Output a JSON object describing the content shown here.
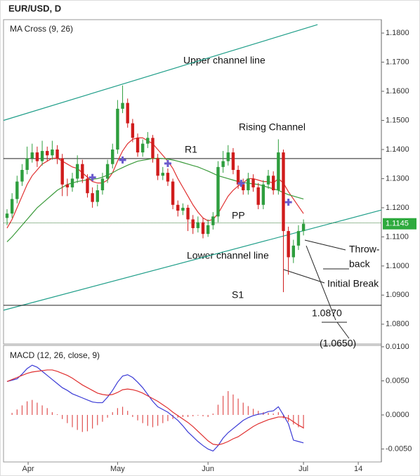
{
  "title": "EUR/USD, D",
  "chart_data": [
    {
      "type": "candlestick",
      "title": "MA Cross (9, 26)",
      "xlim": [
        -0.7,
        74.5
      ],
      "ylim": [
        1.0732,
        1.1846
      ],
      "yticks": [
        {
          "value": 1.18,
          "label": "1.1800"
        },
        {
          "value": 1.17,
          "label": "1.1700"
        },
        {
          "value": 1.16,
          "label": "1.1600"
        },
        {
          "value": 1.15,
          "label": "1.1500"
        },
        {
          "value": 1.14,
          "label": "1.1400"
        },
        {
          "value": 1.13,
          "label": "1.1300"
        },
        {
          "value": 1.12,
          "label": "1.1200"
        },
        {
          "value": 1.11,
          "label": "1.1100"
        },
        {
          "value": 1.1,
          "label": "1.1000"
        },
        {
          "value": 1.09,
          "label": "1.0900"
        },
        {
          "value": 1.08,
          "label": "1.0800"
        }
      ],
      "grid": false,
      "up_color": "#2e9e3e",
      "down_color": "#d01c1c",
      "candles": {
        "open": [
          1.1165,
          1.118,
          1.123,
          1.129,
          1.133,
          1.137,
          1.139,
          1.136,
          1.1395,
          1.138,
          1.14,
          1.137,
          1.128,
          1.127,
          1.13,
          1.135,
          1.13,
          1.125,
          1.122,
          1.126,
          1.13,
          1.135,
          1.14,
          1.154,
          1.156,
          1.149,
          1.144,
          1.139,
          1.142,
          1.144,
          1.137,
          1.131,
          1.132,
          1.129,
          1.121,
          1.119,
          1.12,
          1.116,
          1.113,
          1.115,
          1.111,
          1.114,
          1.117,
          1.134,
          1.136,
          1.139,
          1.133,
          1.128,
          1.126,
          1.13,
          1.127,
          1.121,
          1.128,
          1.131,
          1.126,
          1.139,
          1.112,
          1.103,
          1.107,
          1.112
        ],
        "high": [
          1.1195,
          1.125,
          1.131,
          1.135,
          1.141,
          1.142,
          1.141,
          1.143,
          1.141,
          1.143,
          1.1415,
          1.1385,
          1.13,
          1.132,
          1.138,
          1.1365,
          1.1315,
          1.127,
          1.128,
          1.132,
          1.1365,
          1.142,
          1.157,
          1.162,
          1.1575,
          1.1505,
          1.1455,
          1.1435,
          1.146,
          1.145,
          1.1385,
          1.134,
          1.1335,
          1.13,
          1.1225,
          1.1215,
          1.121,
          1.1175,
          1.117,
          1.1165,
          1.116,
          1.1185,
          1.136,
          1.1395,
          1.1415,
          1.1405,
          1.1345,
          1.13,
          1.132,
          1.1315,
          1.1285,
          1.1295,
          1.133,
          1.1325,
          1.1435,
          1.14,
          1.1135,
          1.109,
          1.114,
          1.116
        ],
        "low": [
          1.114,
          1.1165,
          1.1215,
          1.1275,
          1.1315,
          1.1355,
          1.134,
          1.1345,
          1.136,
          1.1365,
          1.135,
          1.124,
          1.124,
          1.1255,
          1.1285,
          1.1285,
          1.1235,
          1.12,
          1.1205,
          1.1245,
          1.1285,
          1.1335,
          1.1385,
          1.1525,
          1.1475,
          1.1425,
          1.1375,
          1.1375,
          1.1405,
          1.1355,
          1.1295,
          1.1295,
          1.1275,
          1.1195,
          1.117,
          1.1175,
          1.112,
          1.111,
          1.1115,
          1.1095,
          1.11,
          1.1125,
          1.115,
          1.132,
          1.1345,
          1.1315,
          1.1265,
          1.1245,
          1.1245,
          1.1255,
          1.1195,
          1.1195,
          1.1265,
          1.1245,
          1.1245,
          1.091,
          1.097,
          1.101,
          1.1055,
          1.1105
        ],
        "close": [
          1.118,
          1.123,
          1.129,
          1.133,
          1.137,
          1.139,
          1.136,
          1.1395,
          1.138,
          1.14,
          1.137,
          1.128,
          1.127,
          1.13,
          1.135,
          1.13,
          1.125,
          1.122,
          1.126,
          1.13,
          1.135,
          1.14,
          1.154,
          1.156,
          1.149,
          1.144,
          1.139,
          1.142,
          1.144,
          1.137,
          1.131,
          1.132,
          1.129,
          1.121,
          1.119,
          1.12,
          1.116,
          1.113,
          1.115,
          1.111,
          1.114,
          1.117,
          1.134,
          1.136,
          1.139,
          1.133,
          1.128,
          1.126,
          1.13,
          1.127,
          1.121,
          1.128,
          1.131,
          1.126,
          1.139,
          1.112,
          1.103,
          1.107,
          1.112,
          1.1145
        ]
      },
      "series": [
        {
          "color": "#e03030",
          "values": [
            1.113,
            1.116,
            1.12,
            1.124,
            1.128,
            1.131,
            1.133,
            1.135,
            1.136,
            1.137,
            1.137,
            1.136,
            1.135,
            1.134,
            1.1335,
            1.132,
            1.1305,
            1.129,
            1.1285,
            1.1285,
            1.1295,
            1.132,
            1.136,
            1.1395,
            1.142,
            1.1435,
            1.144,
            1.144,
            1.143,
            1.142,
            1.14,
            1.138,
            1.136,
            1.1335,
            1.13,
            1.127,
            1.124,
            1.121,
            1.1185,
            1.1165,
            1.1155,
            1.116,
            1.118,
            1.121,
            1.124,
            1.126,
            1.1275,
            1.1285,
            1.13,
            1.13,
            1.1295,
            1.129,
            1.129,
            1.1285,
            1.13,
            1.1285,
            1.1255,
            1.123,
            1.1205,
            1.118
          ]
        },
        {
          "color": "#3a9a3a",
          "values": [
            1.1083,
            1.11,
            1.112,
            1.114,
            1.116,
            1.118,
            1.12,
            1.1215,
            1.123,
            1.1245,
            1.126,
            1.127,
            1.128,
            1.1285,
            1.129,
            1.1293,
            1.1296,
            1.1298,
            1.13,
            1.1305,
            1.1312,
            1.132,
            1.133,
            1.1338,
            1.1346,
            1.1353,
            1.136,
            1.1363,
            1.1366,
            1.1369,
            1.137,
            1.1369,
            1.1367,
            1.1364,
            1.136,
            1.1355,
            1.135,
            1.1345,
            1.134,
            1.1333,
            1.1326,
            1.1318,
            1.131,
            1.1305,
            1.13,
            1.1295,
            1.129,
            1.1287,
            1.1284,
            1.1282,
            1.128,
            1.1275,
            1.127,
            1.1265,
            1.126,
            1.1252,
            1.1245,
            1.124,
            1.1235,
            1.123
          ]
        }
      ],
      "cross_markers": {
        "color": "#6a5acd",
        "x": [
          17,
          23,
          32,
          46.6,
          56
        ],
        "values": [
          1.1304,
          1.1364,
          1.1352,
          1.1284,
          1.1219
        ]
      },
      "channel_lines": [
        {
          "color": "#1f9e89",
          "x": [
            -0.7,
            61.8
          ],
          "values": [
            1.15,
            1.1829
          ]
        },
        {
          "color": "#1f9e89",
          "x": [
            -0.7,
            74.5
          ],
          "values": [
            1.0848,
            1.1192
          ]
        }
      ],
      "levels": [
        {
          "label": "R1",
          "value": 1.1369
        },
        {
          "label": "PP",
          "value": 1.1148
        },
        {
          "label": "S1",
          "value": 1.0865
        }
      ],
      "last_price": 1.1145,
      "last_price_color": "#2eaa3e",
      "annotations": [
        "Upper channel line",
        "Rising Channel",
        "Lower channel line",
        "Throw-",
        "back",
        "Initial Break",
        "1.0870",
        "(1.0650)"
      ]
    },
    {
      "type": "macd",
      "title": "MACD (12, 26, close, 9)",
      "xlim": [
        -0.7,
        74.5
      ],
      "ylim": [
        -0.0069,
        0.0102
      ],
      "yticks": [
        {
          "value": 0.01,
          "label": "0.0100"
        },
        {
          "value": 0.005,
          "label": "0.0050"
        },
        {
          "value": 0,
          "label": "0.0000"
        },
        {
          "value": -0.005,
          "label": "-0.0050"
        }
      ],
      "xticks": [
        {
          "value": 4.2,
          "label": "Apr"
        },
        {
          "value": 22.0,
          "label": "May"
        },
        {
          "value": 40.0,
          "label": "Jun"
        },
        {
          "value": 59.0,
          "label": "Jul"
        },
        {
          "value": 69.9,
          "label": "14"
        }
      ],
      "series": [
        {
          "color": "#3b3bd6",
          "values": [
            0.0049,
            0.0051,
            0.0053,
            0.006,
            0.0068,
            0.0073,
            0.007,
            0.0064,
            0.0058,
            0.0052,
            0.0046,
            0.004,
            0.0036,
            0.0031,
            0.0028,
            0.0025,
            0.0022,
            0.0019,
            0.0018,
            0.0018,
            0.0026,
            0.0036,
            0.0048,
            0.0057,
            0.0059,
            0.0055,
            0.0048,
            0.004,
            0.003,
            0.002,
            0.0012,
            0.0008,
            0.0004,
            -0.0002,
            -0.0008,
            -0.0016,
            -0.0025,
            -0.0032,
            -0.0039,
            -0.0045,
            -0.005,
            -0.0053,
            -0.0045,
            -0.0034,
            -0.0026,
            -0.002,
            -0.0014,
            -0.0008,
            -0.0004,
            -0.0001,
            0.0001,
            0.0002,
            0.0005,
            0.0006,
            0.0012,
            0.0,
            -0.0013,
            -0.0037,
            -0.0039,
            -0.0041
          ]
        },
        {
          "color": "#e03030",
          "values": [
            0.0049,
            0.0052,
            0.0055,
            0.0058,
            0.0061,
            0.0063,
            0.0064,
            0.0065,
            0.0066,
            0.0066,
            0.0064,
            0.0061,
            0.0058,
            0.0054,
            0.0049,
            0.0044,
            0.004,
            0.0036,
            0.0032,
            0.003,
            0.0029,
            0.003,
            0.0033,
            0.0037,
            0.0038,
            0.0037,
            0.0035,
            0.0032,
            0.0028,
            0.0024,
            0.002,
            0.0015,
            0.001,
            0.0004,
            -0.0001,
            -0.0006,
            -0.0011,
            -0.0017,
            -0.0024,
            -0.0031,
            -0.0038,
            -0.0043,
            -0.0044,
            -0.0042,
            -0.0039,
            -0.0035,
            -0.0032,
            -0.0027,
            -0.0022,
            -0.0017,
            -0.0013,
            -0.001,
            -0.0007,
            -0.0005,
            -0.0003,
            -0.0003,
            -0.0005,
            -0.001,
            -0.0015,
            -0.0019
          ]
        }
      ],
      "histogram": {
        "color": "#e05050",
        "values": [
          0.0,
          0.0003,
          0.0008,
          0.0014,
          0.002,
          0.0022,
          0.0018,
          0.0014,
          0.001,
          0.0004,
          0.0001,
          -0.0006,
          -0.0012,
          -0.0018,
          -0.0022,
          -0.0025,
          -0.0024,
          -0.002,
          -0.0015,
          -0.001,
          -0.0004,
          0.0004,
          0.001,
          0.0012,
          0.0006,
          -0.0003,
          -0.0008,
          -0.0012,
          -0.0016,
          -0.0018,
          -0.0016,
          -0.0012,
          -0.0009,
          -0.0006,
          -0.0004,
          -0.0003,
          -0.0003,
          -0.0002,
          -0.0001,
          -0.0002,
          -0.0003,
          0.0002,
          0.0015,
          0.0028,
          0.0035,
          0.003,
          0.0024,
          0.0018,
          0.0013,
          0.0009,
          0.0006,
          0.0004,
          0.0003,
          0.0002,
          0.0004,
          -0.0005,
          -0.001,
          -0.0014,
          -0.0018,
          -0.002
        ]
      }
    }
  ]
}
